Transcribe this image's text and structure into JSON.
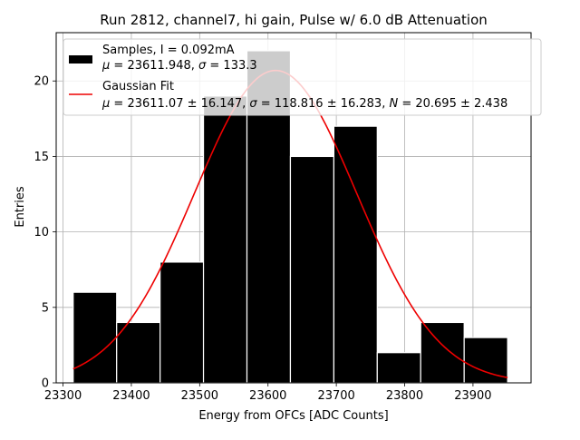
{
  "chart_data": {
    "type": "bar",
    "title": "Run 2812, channel7, hi gain, Pulse w/ 6.0 dB Attenuation",
    "xlabel": "Energy from OFCs [ADC Counts]",
    "ylabel": "Entries",
    "xlim": [
      23290,
      23985
    ],
    "ylim": [
      0,
      23.2
    ],
    "x_ticks": [
      23300,
      23400,
      23500,
      23600,
      23700,
      23800,
      23900
    ],
    "y_ticks": [
      0,
      5,
      10,
      15,
      20
    ],
    "grid": true,
    "legend_position": "top-right",
    "bins": [
      {
        "lo": 23314.9,
        "hi": 23378.5,
        "count": 6,
        "color": "#000000"
      },
      {
        "lo": 23378.5,
        "hi": 23442.1,
        "count": 4,
        "color": "#000000"
      },
      {
        "lo": 23442.1,
        "hi": 23505.6,
        "count": 8,
        "color": "#000000"
      },
      {
        "lo": 23505.6,
        "hi": 23569.2,
        "count": 19,
        "color": "#000000"
      },
      {
        "lo": 23569.2,
        "hi": 23632.8,
        "count": 22,
        "color": "#000000"
      },
      {
        "lo": 23632.8,
        "hi": 23696.4,
        "count": 15,
        "color": "#000000"
      },
      {
        "lo": 23696.4,
        "hi": 23759.9,
        "count": 17,
        "color": "#000000"
      },
      {
        "lo": 23759.9,
        "hi": 23823.5,
        "count": 2,
        "color": "#000000"
      },
      {
        "lo": 23823.5,
        "hi": 23887.1,
        "count": 4,
        "color": "#000000"
      },
      {
        "lo": 23887.1,
        "hi": 23950.7,
        "count": 3,
        "color": "#000000"
      }
    ],
    "fit": {
      "mu": 23611.07,
      "sigma": 118.816,
      "N": 20.695,
      "x_range": [
        23314.9,
        23950.7
      ],
      "color": "#ee0000"
    },
    "legend": [
      {
        "kind": "patch",
        "color": "#000000",
        "line1": "Samples, I = 0.092mA",
        "line2_parts": [
          "μ",
          " = 23611.948, ",
          "σ",
          " = 133.3"
        ]
      },
      {
        "kind": "line",
        "color": "#ee0000",
        "line1": "Gaussian Fit",
        "line2_parts": [
          "μ",
          " = 23611.07 ± 16.147, ",
          "σ",
          " = 118.816 ± 16.283, ",
          "N",
          " = 20.695 ± 2.438"
        ]
      }
    ]
  }
}
